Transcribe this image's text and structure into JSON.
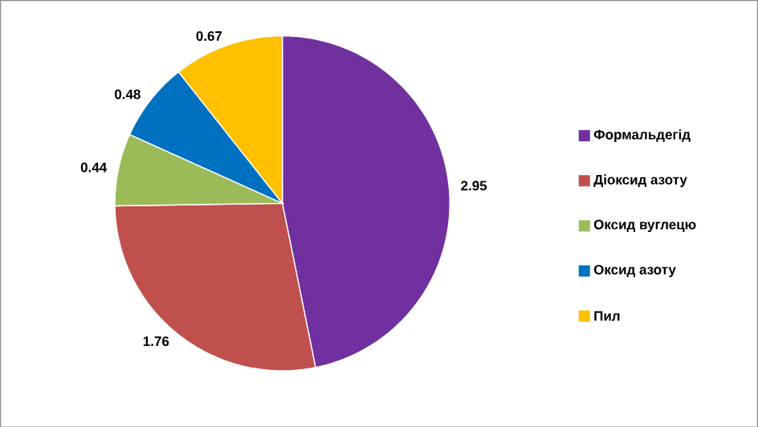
{
  "chart_data": {
    "type": "pie",
    "categories": [
      "Формальдегід",
      "Діоксид азоту",
      "Оксид вуглецю",
      "Оксид азоту",
      "Пил"
    ],
    "values": [
      2.95,
      1.76,
      0.44,
      0.48,
      0.67
    ],
    "colors": [
      "#7030a0",
      "#c0504d",
      "#9bbb59",
      "#0070c0",
      "#ffc000"
    ],
    "data_labels": true,
    "legend": "right"
  }
}
